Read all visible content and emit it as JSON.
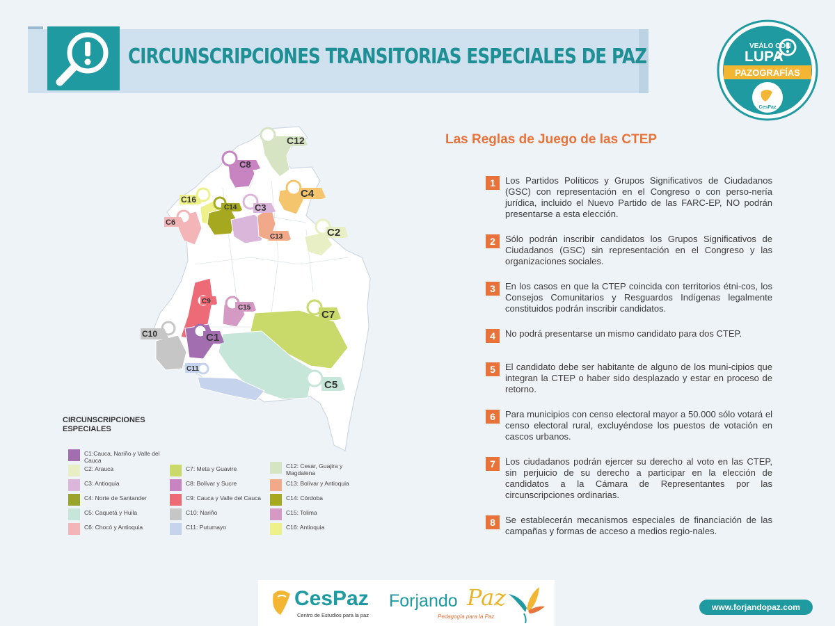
{
  "header": {
    "title": "CIRCUNSCRIPCIONES TRANSITORIAS ESPECIALES DE PAZ"
  },
  "badge": {
    "line1": "VEÁLO CON",
    "line2": "LUPA",
    "ribbon": "PAZOGRAFÍAS",
    "logo": "CesPaz"
  },
  "rules": {
    "title": "Las Reglas de Juego de las CTEP",
    "items": [
      {
        "num": "1",
        "text": "Los Partidos Políticos y Grupos Significativos de Ciudadanos (GSC) con representación en el Congreso o con perso-nería jurídica, incluido el Nuevo Partido de las FARC-EP, NO podrán presentarse a esta elección."
      },
      {
        "num": "2",
        "text": "Sólo podrán inscribir candidatos los Grupos Significativos de Ciudadanos (GSC) sin representación en el Congreso y las organizaciones sociales."
      },
      {
        "num": "3",
        "text": "En los casos en que la CTEP coincida con territorios étni-cos, los Consejos Comunitarios y Resguardos Indígenas legalmente constituidos podrán inscribir candidatos."
      },
      {
        "num": "4",
        "text": "No podrá presentarse un mismo candidato para dos CTEP."
      },
      {
        "num": "5",
        "text": "El candidato debe ser habitante de alguno de los muni-cipios que integran la CTEP o haber sido desplazado y estar en proceso de retorno."
      },
      {
        "num": "6",
        "text": "Para municipios con censo electoral mayor a 50.000 sólo votará el censo electoral rural, excluyéndose los puestos de votación en cascos urbanos."
      },
      {
        "num": "7",
        "text": "Los ciudadanos podrán ejercer su derecho al voto en las CTEP, sin perjuicio de su derecho a participar en la elección de candidatos a la Cámara de Representantes por las circunscripciones ordinarias."
      },
      {
        "num": "8",
        "text": "Se establecerán mecanismos especiales de financiación de las campañas y formas de acceso a medios regio-nales."
      }
    ]
  },
  "legend": {
    "title": "CIRCUNSCRIPCIONES ESPECIALES",
    "items": [
      {
        "text": "C1:Cauca, Nariño y Valle del Cauca",
        "color": "#a26eb0"
      },
      {
        "text": "C2: Arauca",
        "color": "#e8efc4"
      },
      {
        "text": "C3: Antioquia",
        "color": "#d9b6da"
      },
      {
        "text": "C4: Norte de Santander",
        "color": "#9aa42a"
      },
      {
        "text": "C5: Caquetá y Huila",
        "color": "#c6e6d9"
      },
      {
        "text": "C6: Chocó y Antioquia",
        "color": "#f3b5b8"
      },
      {
        "text": "C7: Meta y Guavire",
        "color": "#c9d96a"
      },
      {
        "text": "C8: Bolívar y Sucre",
        "color": "#c784c0"
      },
      {
        "text": "C9: Cauca y Valle del Cauca",
        "color": "#ed6b77"
      },
      {
        "text": "C10: Nariño",
        "color": "#c6c6c6"
      },
      {
        "text": "C11: Putumayo",
        "color": "#c6d3ec"
      },
      {
        "text": "C12: Cesar, Guajira y Magdalena",
        "color": "#d7e4c3"
      },
      {
        "text": "C13: Bolívar y Antioquia",
        "color": "#f2a98a"
      },
      {
        "text": "C14: Córdoba",
        "color": "#a6a820"
      },
      {
        "text": "C15: Tolima",
        "color": "#d59ac4"
      },
      {
        "text": "C16: Antioquia",
        "color": "#eef08a"
      }
    ]
  },
  "map": {
    "labels": [
      "C12",
      "C8",
      "C4",
      "C16",
      "C14",
      "C3",
      "C6",
      "C13",
      "C2",
      "C9",
      "C15",
      "C7",
      "C10",
      "C1",
      "C11",
      "C5"
    ]
  },
  "footer": {
    "cespaz": "CesPaz",
    "cespaz_sub": "Centro de Estudios para la paz",
    "forjando": "Forjando",
    "paz": "Paz",
    "forjando_sub": "Pedagogía para la Paz",
    "url": "www.forjandopaz.com"
  }
}
